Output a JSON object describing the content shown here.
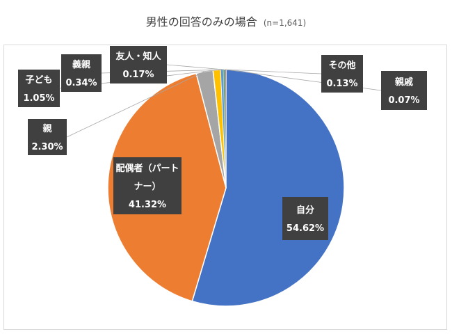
{
  "chart_data": {
    "type": "pie",
    "title": "男性の回答のみの場合",
    "subtitle": "(n=1,641)",
    "slices": [
      {
        "label": "自分",
        "value": 54.62,
        "display": "54.62%",
        "color": "#4472C4"
      },
      {
        "label": "配偶者（パートナー）",
        "value": 41.32,
        "display": "41.32%",
        "color": "#ED7D31"
      },
      {
        "label": "親",
        "value": 2.3,
        "display": "2.30%",
        "color": "#A5A5A5"
      },
      {
        "label": "子ども",
        "value": 1.05,
        "display": "1.05%",
        "color": "#FFC000"
      },
      {
        "label": "義親",
        "value": 0.34,
        "display": "0.34%",
        "color": "#5B9BD5"
      },
      {
        "label": "友人・知人",
        "value": 0.17,
        "display": "0.17%",
        "color": "#70AD47"
      },
      {
        "label": "その他",
        "value": 0.13,
        "display": "0.13%",
        "color": "#264478"
      },
      {
        "label": "親戚",
        "value": 0.07,
        "display": "0.07%",
        "color": "#9E480E"
      }
    ]
  }
}
